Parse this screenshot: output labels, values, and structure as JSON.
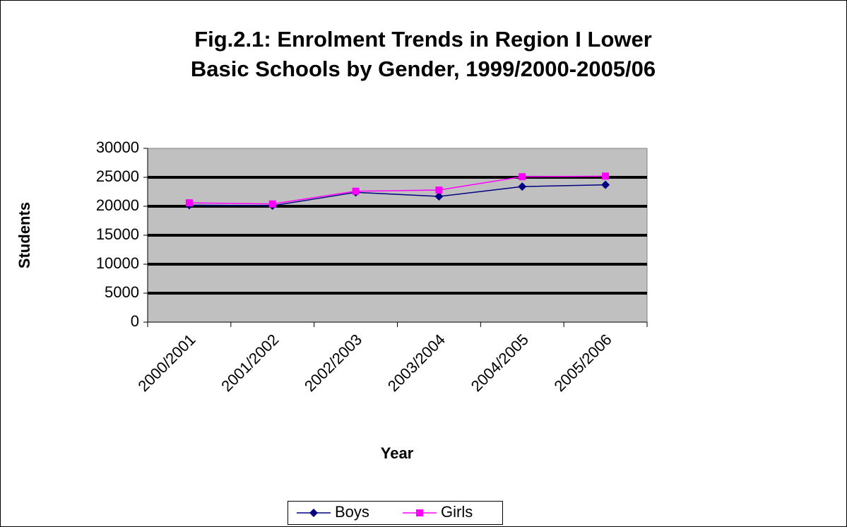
{
  "chart_data": {
    "type": "line",
    "title": "Fig.2.1: Enrolment Trends in Region I Lower Basic Schools by Gender, 1999/2000-2005/06",
    "x_label": "Year",
    "y_label": "Students",
    "categories": [
      "2000/2001",
      "2001/2002",
      "2002/2003",
      "2003/2004",
      "2004/2005",
      "2005/2006"
    ],
    "series": [
      {
        "name": "Boys",
        "color": "#000080",
        "marker": "diamond",
        "values": [
          20200,
          20100,
          22400,
          21700,
          23400,
          23700
        ]
      },
      {
        "name": "Girls",
        "color": "#ff00ff",
        "marker": "square",
        "values": [
          20600,
          20400,
          22600,
          22800,
          25100,
          25200
        ]
      }
    ],
    "ylim": [
      0,
      30000
    ],
    "yticks": [
      0,
      5000,
      10000,
      15000,
      20000,
      25000,
      30000
    ],
    "grid": true,
    "legend": "bottom"
  }
}
